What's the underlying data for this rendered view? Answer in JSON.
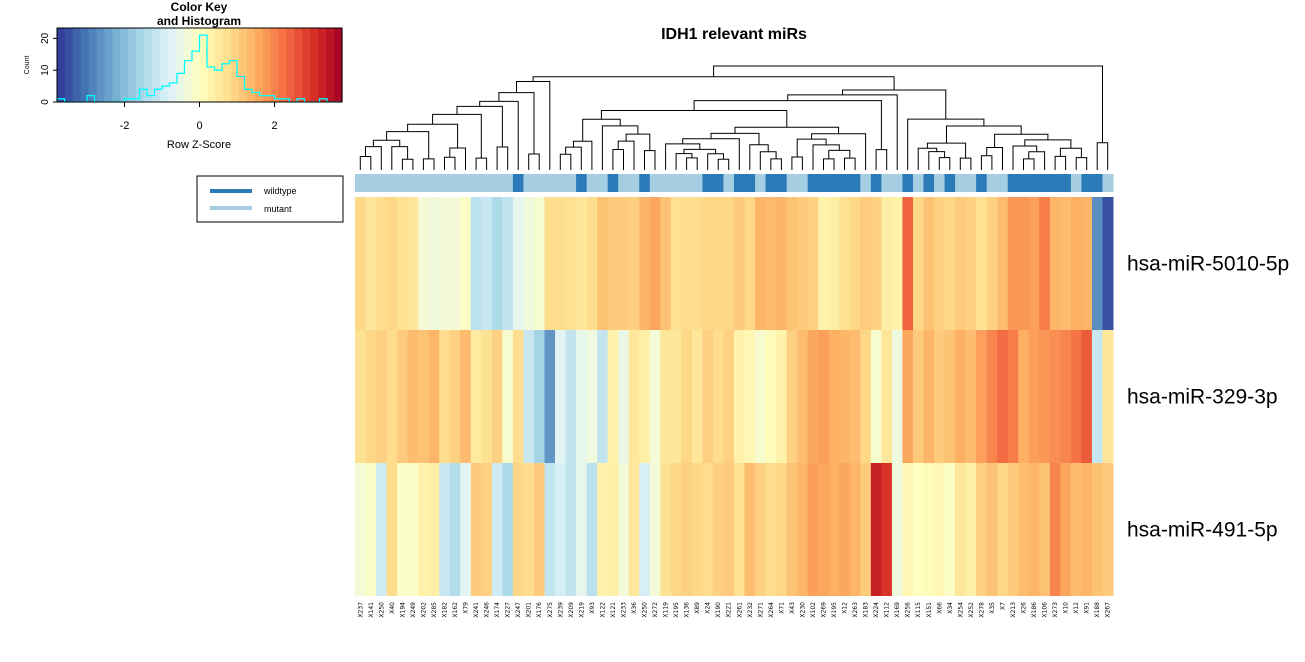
{
  "chart_data": {
    "type": "heatmap",
    "title": "IDH1 relevant miRs",
    "rows": [
      "hsa-miR-5010-5p",
      "hsa-miR-329-3p",
      "hsa-miR-491-5p"
    ],
    "columns": [
      "X237",
      "X141",
      "X250",
      "X40",
      "X194",
      "X249",
      "X202",
      "X285",
      "X182",
      "X162",
      "X79",
      "X241",
      "X246",
      "X174",
      "X227",
      "X247",
      "X201",
      "X176",
      "X275",
      "X239",
      "X209",
      "X219",
      "X93",
      "X122",
      "X121",
      "X233",
      "X36",
      "X250",
      "X272",
      "X119",
      "X195",
      "X136",
      "X89",
      "X24",
      "X190",
      "X221",
      "X261",
      "X232",
      "X271",
      "X264",
      "X71",
      "X43",
      "X230",
      "X102",
      "X269",
      "X195",
      "X12",
      "X263",
      "X183",
      "X224",
      "X112",
      "X169",
      "X256",
      "X115",
      "X151",
      "X66",
      "X34",
      "X254",
      "X252",
      "X278",
      "X35",
      "X7",
      "X213",
      "X26",
      "X186",
      "X106",
      "X273",
      "X10",
      "X12",
      "X91",
      "X188",
      "X267"
    ],
    "group": [
      0,
      0,
      0,
      0,
      0,
      0,
      0,
      0,
      0,
      0,
      0,
      0,
      0,
      0,
      0,
      1,
      0,
      0,
      0,
      0,
      0,
      1,
      0,
      0,
      1,
      0,
      0,
      1,
      0,
      0,
      0,
      0,
      0,
      1,
      1,
      0,
      1,
      1,
      0,
      1,
      1,
      0,
      0,
      1,
      1,
      1,
      1,
      1,
      0,
      1,
      0,
      0,
      1,
      0,
      1,
      0,
      1,
      0,
      0,
      1,
      0,
      0,
      1,
      1,
      1,
      1,
      1,
      1,
      0,
      1,
      1,
      0
    ],
    "values": [
      [
        0.9,
        0.6,
        0.8,
        0.9,
        0.7,
        0.6,
        -0.3,
        -0.4,
        -0.3,
        -0.3,
        -0.1,
        -1.3,
        -1.1,
        -1.5,
        -1.2,
        -0.6,
        -0.4,
        -0.2,
        0.8,
        0.8,
        0.7,
        0.6,
        0.8,
        1.2,
        1.1,
        1.1,
        1.0,
        1.4,
        1.6,
        1.2,
        0.7,
        0.8,
        0.8,
        0.9,
        0.9,
        0.9,
        1.1,
        0.9,
        1.4,
        1.3,
        1.4,
        1.2,
        1.1,
        1.0,
        0.3,
        0.4,
        0.7,
        0.9,
        1.1,
        1.0,
        0.4,
        0.3,
        2.4,
        0.9,
        1.2,
        1.0,
        0.9,
        1.1,
        1.0,
        0.7,
        1.0,
        1.3,
        1.8,
        1.8,
        1.7,
        2.1,
        1.4,
        1.3,
        1.5,
        1.4,
        -2.7,
        -3.5
      ],
      [
        0.7,
        0.9,
        1.0,
        0.8,
        1.1,
        1.3,
        1.2,
        1.4,
        0.8,
        1.0,
        1.3,
        0.5,
        0.7,
        1.0,
        -0.2,
        0.8,
        -1.1,
        -1.6,
        -2.6,
        -0.7,
        -1.2,
        -0.6,
        -0.4,
        -1.2,
        0.3,
        -0.5,
        0.6,
        0.4,
        -0.3,
        0.6,
        0.6,
        0.9,
        0.6,
        1.0,
        0.8,
        1.0,
        0.3,
        0.2,
        -0.2,
        0.1,
        0.3,
        1.0,
        1.3,
        1.6,
        1.7,
        1.5,
        1.4,
        1.3,
        0.9,
        -0.2,
        0.6,
        -0.4,
        1.6,
        1.1,
        1.4,
        1.1,
        1.2,
        1.5,
        1.3,
        1.7,
        2.0,
        2.3,
        2.1,
        1.5,
        1.7,
        1.8,
        1.9,
        2.0,
        2.2,
        2.5,
        -1.1,
        0.6
      ],
      [
        -0.3,
        -0.1,
        -1.0,
        0.8,
        -0.1,
        -0.1,
        0.3,
        0.4,
        -1.1,
        -1.4,
        -0.7,
        1.1,
        1.0,
        -1.0,
        -1.5,
        0.9,
        0.8,
        1.1,
        -1.2,
        -0.9,
        -1.2,
        -0.6,
        -1.3,
        0.3,
        0.4,
        -0.3,
        0.6,
        -0.9,
        -0.3,
        0.7,
        0.9,
        1.0,
        0.9,
        0.8,
        1.0,
        1.1,
        0.7,
        1.3,
        1.0,
        0.8,
        0.9,
        1.2,
        1.4,
        1.7,
        1.6,
        1.5,
        1.6,
        1.4,
        1.1,
        3.3,
        3.0,
        -0.4,
        0.2,
        0.0,
        0.1,
        0.2,
        -0.1,
        0.6,
        0.4,
        1.0,
        1.2,
        0.9,
        1.1,
        1.3,
        1.4,
        1.2,
        2.0,
        1.6,
        1.3,
        1.4,
        1.2,
        1.1
      ]
    ],
    "legend": [
      {
        "label": "wildtype",
        "color": "#2b7bb9"
      },
      {
        "label": "mutant",
        "color": "#a6cee3"
      }
    ],
    "color_key": {
      "title": "Color Key\nand Histogram",
      "xlabel": "Row Z-Score",
      "ylabel": "Count",
      "xticks": [
        "-2",
        "0",
        "2"
      ],
      "yticks": [
        "0",
        "10",
        "20"
      ],
      "range": [
        -3.8,
        3.8
      ],
      "palette": [
        "#313695",
        "#4575b4",
        "#74add1",
        "#abd9e9",
        "#e0f3f8",
        "#ffffbf",
        "#fee090",
        "#fdae61",
        "#f46d43",
        "#d73027",
        "#a50026"
      ],
      "hist_color": "#00ffff",
      "hist_bins": [
        {
          "x": -3.7,
          "count": 1
        },
        {
          "x": -3.5,
          "count": 0
        },
        {
          "x": -3.3,
          "count": 0
        },
        {
          "x": -3.1,
          "count": 0
        },
        {
          "x": -2.9,
          "count": 2
        },
        {
          "x": -2.7,
          "count": 0
        },
        {
          "x": -2.5,
          "count": 0
        },
        {
          "x": -2.3,
          "count": 0
        },
        {
          "x": -2.1,
          "count": 0
        },
        {
          "x": -1.9,
          "count": 1
        },
        {
          "x": -1.7,
          "count": 1
        },
        {
          "x": -1.5,
          "count": 4
        },
        {
          "x": -1.3,
          "count": 2
        },
        {
          "x": -1.1,
          "count": 4
        },
        {
          "x": -0.9,
          "count": 5
        },
        {
          "x": -0.7,
          "count": 6
        },
        {
          "x": -0.5,
          "count": 9
        },
        {
          "x": -0.3,
          "count": 13
        },
        {
          "x": -0.1,
          "count": 16
        },
        {
          "x": 0.1,
          "count": 21
        },
        {
          "x": 0.3,
          "count": 11
        },
        {
          "x": 0.5,
          "count": 10
        },
        {
          "x": 0.7,
          "count": 12
        },
        {
          "x": 0.9,
          "count": 13
        },
        {
          "x": 1.1,
          "count": 8
        },
        {
          "x": 1.3,
          "count": 4
        },
        {
          "x": 1.5,
          "count": 3
        },
        {
          "x": 1.7,
          "count": 2
        },
        {
          "x": 1.9,
          "count": 2
        },
        {
          "x": 2.1,
          "count": 1
        },
        {
          "x": 2.3,
          "count": 1
        },
        {
          "x": 2.5,
          "count": 0
        },
        {
          "x": 2.7,
          "count": 1
        },
        {
          "x": 2.9,
          "count": 0
        },
        {
          "x": 3.1,
          "count": 0
        },
        {
          "x": 3.3,
          "count": 1
        },
        {
          "x": 3.5,
          "count": 0
        },
        {
          "x": 3.7,
          "count": 0
        }
      ]
    }
  }
}
